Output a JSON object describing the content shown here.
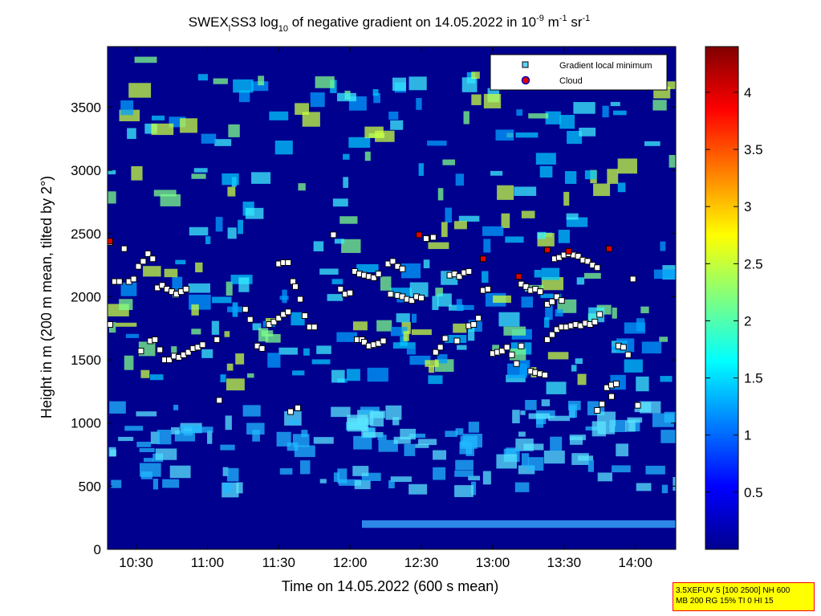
{
  "chart_data": {
    "type": "heatmap",
    "title": "SWEX_l SS3 log10 of negative gradient on 14.05.2022 in 10^-9 m^-1 sr^-1",
    "title_parts": {
      "prefix": "SWEX",
      "sub1": "l",
      "mid": "SS3 log",
      "sub2": "10",
      "text": " of negative gradient on 14.05.2022 in 10",
      "sup1": "-9",
      "text2": " m",
      "sup2": "-1",
      "text3": " sr",
      "sup3": "-1"
    },
    "xlabel": "Time on 14.05.2022 (600 s mean)",
    "ylabel": "Height in m (200 m mean, tilted by 2°)",
    "x_ticks": [
      "10:30",
      "11:00",
      "11:30",
      "12:00",
      "12:30",
      "13:00",
      "13:30",
      "14:00"
    ],
    "x_tick_minutes": [
      630,
      660,
      690,
      720,
      750,
      780,
      810,
      840
    ],
    "xlim_minutes": [
      618,
      857
    ],
    "y_ticks": [
      0,
      500,
      1000,
      1500,
      2000,
      2500,
      3000,
      3500
    ],
    "ylim": [
      0,
      3980
    ],
    "colorbar": {
      "ticks": [
        "0.5",
        "1",
        "1.5",
        "2",
        "2.5",
        "3",
        "3.5",
        "4"
      ],
      "tick_values": [
        0.5,
        1,
        1.5,
        2,
        2.5,
        3,
        3.5,
        4
      ],
      "range": [
        0,
        4.4
      ],
      "colormap": "jet"
    },
    "legend": {
      "placement": "top-right",
      "entries": [
        {
          "label": "Gradient local minimum",
          "marker": "square",
          "color": "#5fd3ff"
        },
        {
          "label": "Cloud",
          "marker": "circle",
          "color": "#e00000",
          "edge": "#0000c0"
        }
      ]
    },
    "gradient_minima": [
      [
        619,
        2430
      ],
      [
        621,
        2120
      ],
      [
        623,
        2120
      ],
      [
        625,
        2380
      ],
      [
        627,
        2120
      ],
      [
        629,
        2140
      ],
      [
        631,
        2240
      ],
      [
        633,
        2280
      ],
      [
        635,
        2340
      ],
      [
        637,
        2300
      ],
      [
        639,
        2070
      ],
      [
        641,
        2090
      ],
      [
        643,
        2060
      ],
      [
        645,
        2040
      ],
      [
        647,
        2020
      ],
      [
        649,
        2040
      ],
      [
        651,
        2060
      ],
      [
        632,
        1570
      ],
      [
        636,
        1650
      ],
      [
        638,
        1660
      ],
      [
        640,
        1580
      ],
      [
        642,
        1500
      ],
      [
        644,
        1500
      ],
      [
        646,
        1530
      ],
      [
        648,
        1520
      ],
      [
        650,
        1540
      ],
      [
        652,
        1560
      ],
      [
        654,
        1590
      ],
      [
        656,
        1600
      ],
      [
        658,
        1620
      ],
      [
        619,
        1780
      ],
      [
        664,
        1660
      ],
      [
        665,
        1180
      ],
      [
        676,
        1900
      ],
      [
        678,
        1820
      ],
      [
        681,
        1610
      ],
      [
        683,
        1590
      ],
      [
        686,
        1780
      ],
      [
        688,
        1800
      ],
      [
        690,
        1830
      ],
      [
        692,
        1860
      ],
      [
        694,
        1880
      ],
      [
        690,
        2260
      ],
      [
        692,
        2270
      ],
      [
        694,
        2270
      ],
      [
        696,
        2120
      ],
      [
        697,
        2080
      ],
      [
        699,
        1980
      ],
      [
        701,
        1850
      ],
      [
        703,
        1760
      ],
      [
        705,
        1760
      ],
      [
        695,
        1090
      ],
      [
        698,
        1120
      ],
      [
        713,
        2490
      ],
      [
        716,
        2060
      ],
      [
        718,
        2020
      ],
      [
        720,
        2030
      ],
      [
        722,
        2200
      ],
      [
        724,
        2180
      ],
      [
        726,
        2170
      ],
      [
        728,
        2160
      ],
      [
        730,
        2150
      ],
      [
        732,
        2180
      ],
      [
        723,
        1660
      ],
      [
        725,
        1660
      ],
      [
        726,
        1640
      ],
      [
        728,
        1610
      ],
      [
        730,
        1620
      ],
      [
        732,
        1630
      ],
      [
        734,
        1650
      ],
      [
        736,
        2260
      ],
      [
        738,
        2280
      ],
      [
        740,
        2240
      ],
      [
        742,
        2220
      ],
      [
        737,
        2020
      ],
      [
        740,
        2010
      ],
      [
        742,
        2000
      ],
      [
        744,
        1980
      ],
      [
        746,
        1970
      ],
      [
        748,
        2000
      ],
      [
        750,
        1990
      ],
      [
        752,
        2460
      ],
      [
        755,
        2470
      ],
      [
        756,
        1560
      ],
      [
        758,
        1600
      ],
      [
        760,
        1670
      ],
      [
        762,
        2170
      ],
      [
        764,
        2180
      ],
      [
        766,
        2160
      ],
      [
        768,
        2190
      ],
      [
        770,
        2200
      ],
      [
        765,
        1650
      ],
      [
        770,
        1770
      ],
      [
        772,
        1780
      ],
      [
        774,
        1830
      ],
      [
        776,
        2050
      ],
      [
        778,
        2060
      ],
      [
        780,
        1550
      ],
      [
        782,
        1560
      ],
      [
        784,
        1570
      ],
      [
        786,
        1600
      ],
      [
        788,
        1540
      ],
      [
        790,
        1470
      ],
      [
        792,
        1610
      ],
      [
        792,
        2100
      ],
      [
        794,
        2080
      ],
      [
        796,
        2050
      ],
      [
        798,
        2060
      ],
      [
        800,
        2040
      ],
      [
        796,
        1410
      ],
      [
        798,
        1400
      ],
      [
        800,
        1390
      ],
      [
        802,
        1380
      ],
      [
        803,
        1660
      ],
      [
        805,
        1700
      ],
      [
        807,
        1740
      ],
      [
        809,
        1760
      ],
      [
        811,
        1760
      ],
      [
        813,
        1770
      ],
      [
        815,
        1780
      ],
      [
        817,
        1770
      ],
      [
        819,
        1790
      ],
      [
        821,
        1780
      ],
      [
        823,
        1800
      ],
      [
        825,
        1860
      ],
      [
        806,
        2300
      ],
      [
        808,
        2310
      ],
      [
        810,
        2330
      ],
      [
        812,
        2340
      ],
      [
        814,
        2330
      ],
      [
        816,
        2320
      ],
      [
        818,
        2290
      ],
      [
        820,
        2280
      ],
      [
        822,
        2250
      ],
      [
        824,
        2230
      ],
      [
        803,
        1940
      ],
      [
        805,
        1960
      ],
      [
        807,
        2000
      ],
      [
        809,
        1970
      ],
      [
        824,
        1100
      ],
      [
        826,
        1150
      ],
      [
        828,
        1280
      ],
      [
        830,
        1300
      ],
      [
        832,
        1310
      ],
      [
        830,
        1210
      ],
      [
        833,
        1610
      ],
      [
        835,
        1600
      ],
      [
        837,
        1540
      ],
      [
        839,
        2140
      ],
      [
        841,
        1140
      ]
    ],
    "cloud_points": [
      [
        619,
        2440
      ],
      [
        749,
        2490
      ],
      [
        776,
        2300
      ],
      [
        791,
        2160
      ],
      [
        803,
        2370
      ],
      [
        812,
        2360
      ],
      [
        829,
        2380
      ]
    ]
  },
  "info_box": {
    "line1": "3.5XEFUV 5 [100 2500] NH 600",
    "line2": "MB 200 RG 15% TI 0 HI 15"
  }
}
